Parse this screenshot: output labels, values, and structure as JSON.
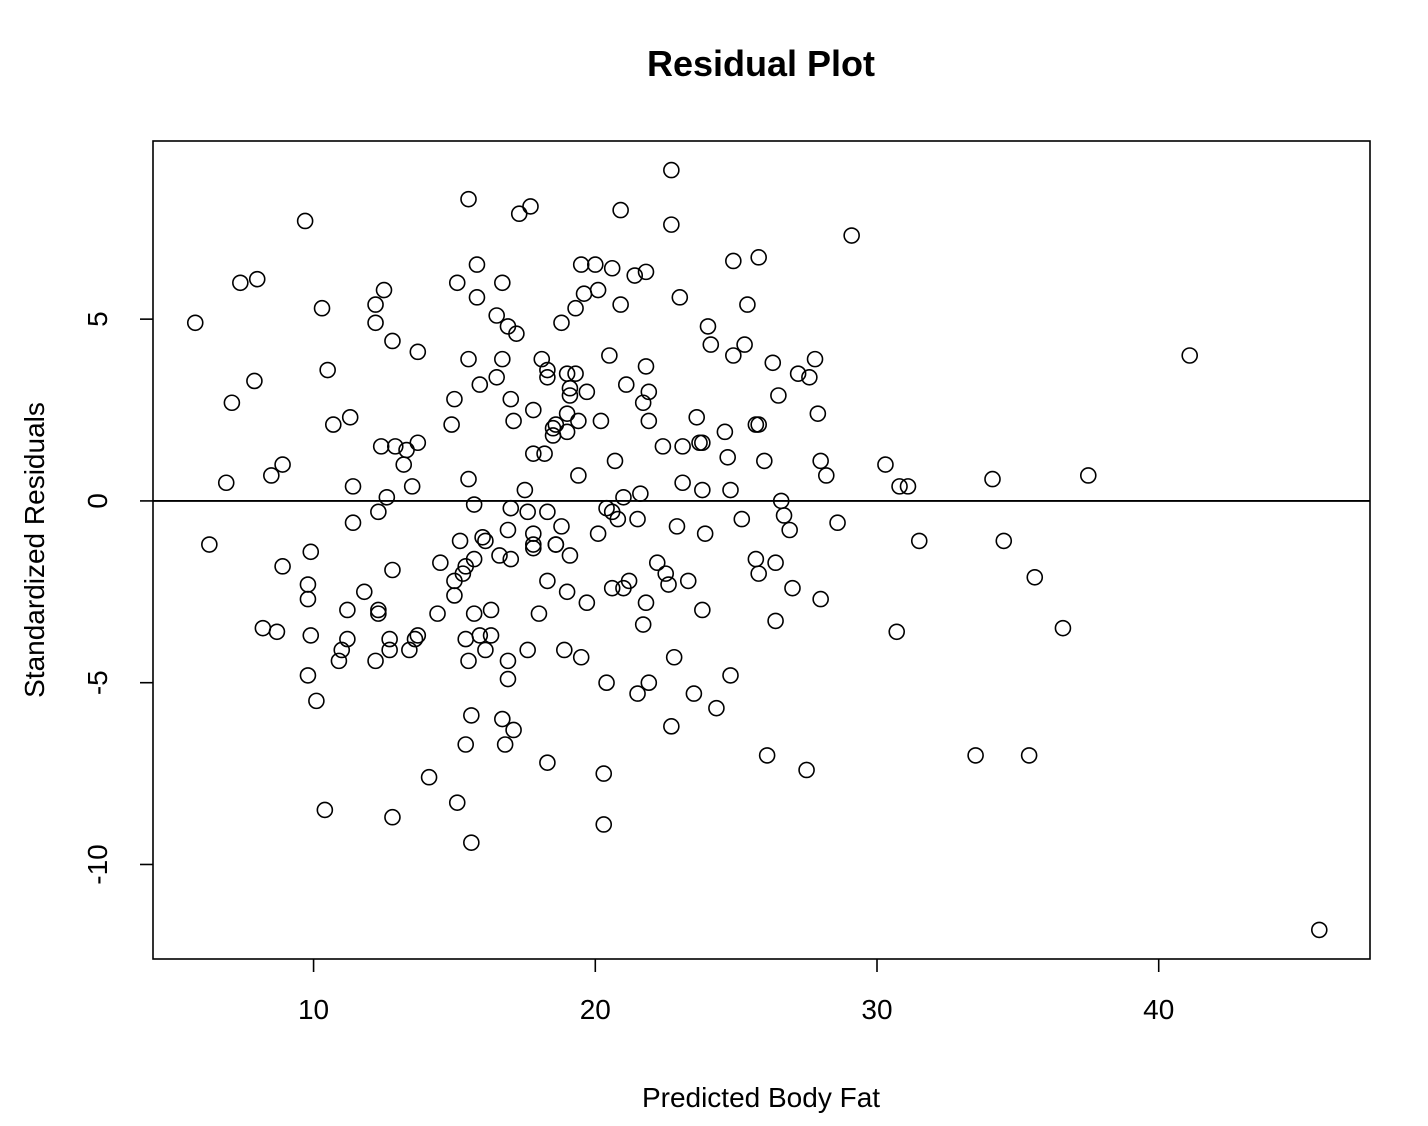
{
  "chart_data": {
    "type": "scatter",
    "title": "Residual Plot",
    "xlabel": "Predicted Body Fat",
    "ylabel": "Standardized Residuals",
    "xlim": [
      4.3,
      47.5
    ],
    "ylim": [
      -12.6,
      9.9
    ],
    "xticks": [
      10,
      20,
      30,
      40
    ],
    "yticks": [
      -10,
      -5,
      0,
      5
    ],
    "xtick_labels": [
      "10",
      "20",
      "30",
      "40"
    ],
    "ytick_labels": [
      "-10",
      "-5",
      "0",
      "5"
    ],
    "reference_line_y": 0,
    "grid": false,
    "legend": "none",
    "marker": "open-circle",
    "color": "#000000",
    "points": [
      [
        5.8,
        4.9
      ],
      [
        6.3,
        -1.2
      ],
      [
        6.9,
        0.5
      ],
      [
        7.1,
        2.7
      ],
      [
        7.4,
        6.0
      ],
      [
        7.9,
        3.3
      ],
      [
        8.0,
        6.1
      ],
      [
        8.2,
        -3.5
      ],
      [
        8.5,
        0.7
      ],
      [
        8.7,
        -3.6
      ],
      [
        8.9,
        1.0
      ],
      [
        8.9,
        -1.8
      ],
      [
        9.7,
        7.7
      ],
      [
        9.8,
        -4.8
      ],
      [
        9.8,
        -2.3
      ],
      [
        9.8,
        -2.7
      ],
      [
        9.9,
        -1.4
      ],
      [
        9.9,
        -3.7
      ],
      [
        10.1,
        -5.5
      ],
      [
        10.3,
        5.3
      ],
      [
        10.4,
        -8.5
      ],
      [
        10.5,
        3.6
      ],
      [
        10.7,
        2.1
      ],
      [
        10.9,
        -4.4
      ],
      [
        11.0,
        -4.1
      ],
      [
        11.2,
        -3.0
      ],
      [
        11.2,
        -3.8
      ],
      [
        11.3,
        2.3
      ],
      [
        11.4,
        0.4
      ],
      [
        11.4,
        -0.6
      ],
      [
        11.8,
        -2.5
      ],
      [
        12.2,
        5.4
      ],
      [
        12.2,
        4.9
      ],
      [
        12.2,
        -4.4
      ],
      [
        12.3,
        -0.3
      ],
      [
        12.3,
        -3.0
      ],
      [
        12.3,
        -3.1
      ],
      [
        12.4,
        1.5
      ],
      [
        12.5,
        5.8
      ],
      [
        12.6,
        0.1
      ],
      [
        12.7,
        -3.8
      ],
      [
        12.7,
        -4.1
      ],
      [
        12.8,
        4.4
      ],
      [
        12.8,
        -1.9
      ],
      [
        12.8,
        -8.7
      ],
      [
        12.9,
        1.5
      ],
      [
        13.2,
        1.0
      ],
      [
        13.3,
        1.4
      ],
      [
        13.4,
        -4.1
      ],
      [
        13.5,
        0.4
      ],
      [
        13.6,
        -3.8
      ],
      [
        13.7,
        1.6
      ],
      [
        13.7,
        4.1
      ],
      [
        13.7,
        -3.7
      ],
      [
        14.1,
        -7.6
      ],
      [
        14.4,
        -3.1
      ],
      [
        14.5,
        -1.7
      ],
      [
        14.9,
        2.1
      ],
      [
        15.0,
        -2.2
      ],
      [
        15.0,
        -2.6
      ],
      [
        15.0,
        2.8
      ],
      [
        15.1,
        6.0
      ],
      [
        15.1,
        -8.3
      ],
      [
        15.2,
        -1.1
      ],
      [
        15.3,
        -2.0
      ],
      [
        15.4,
        -1.8
      ],
      [
        15.4,
        -3.8
      ],
      [
        15.4,
        -6.7
      ],
      [
        15.5,
        8.3
      ],
      [
        15.5,
        3.9
      ],
      [
        15.5,
        0.6
      ],
      [
        15.5,
        -4.4
      ],
      [
        15.6,
        -5.9
      ],
      [
        15.6,
        -9.4
      ],
      [
        15.7,
        -0.1
      ],
      [
        15.7,
        -1.6
      ],
      [
        15.7,
        -3.1
      ],
      [
        15.8,
        6.5
      ],
      [
        15.8,
        5.6
      ],
      [
        15.9,
        3.2
      ],
      [
        15.9,
        -3.7
      ],
      [
        16.0,
        -1.0
      ],
      [
        16.1,
        -1.1
      ],
      [
        16.1,
        -4.1
      ],
      [
        16.3,
        -3.0
      ],
      [
        16.3,
        -3.7
      ],
      [
        16.5,
        5.1
      ],
      [
        16.5,
        3.4
      ],
      [
        16.6,
        -1.5
      ],
      [
        16.7,
        6.0
      ],
      [
        16.7,
        3.9
      ],
      [
        16.7,
        -6.0
      ],
      [
        16.8,
        -6.7
      ],
      [
        16.9,
        4.8
      ],
      [
        16.9,
        -0.8
      ],
      [
        16.9,
        -4.9
      ],
      [
        16.9,
        -4.4
      ],
      [
        17.0,
        -0.2
      ],
      [
        17.0,
        -1.6
      ],
      [
        17.0,
        2.8
      ],
      [
        17.1,
        -6.3
      ],
      [
        17.1,
        2.2
      ],
      [
        17.2,
        4.6
      ],
      [
        17.3,
        7.9
      ],
      [
        17.5,
        0.3
      ],
      [
        17.6,
        -0.3
      ],
      [
        17.6,
        -4.1
      ],
      [
        17.7,
        8.1
      ],
      [
        17.8,
        1.3
      ],
      [
        17.8,
        2.5
      ],
      [
        17.8,
        -0.9
      ],
      [
        17.8,
        -1.2
      ],
      [
        17.8,
        -1.3
      ],
      [
        18.0,
        -3.1
      ],
      [
        18.1,
        3.9
      ],
      [
        18.2,
        1.3
      ],
      [
        18.3,
        3.4
      ],
      [
        18.3,
        3.6
      ],
      [
        18.3,
        -0.3
      ],
      [
        18.3,
        -2.2
      ],
      [
        18.3,
        -7.2
      ],
      [
        18.5,
        1.8
      ],
      [
        18.5,
        2.0
      ],
      [
        18.6,
        -1.2
      ],
      [
        18.6,
        -1.2
      ],
      [
        18.6,
        2.1
      ],
      [
        18.8,
        4.9
      ],
      [
        18.8,
        -0.7
      ],
      [
        18.9,
        -4.1
      ],
      [
        19.0,
        3.5
      ],
      [
        19.0,
        2.4
      ],
      [
        19.0,
        1.9
      ],
      [
        19.0,
        -2.5
      ],
      [
        19.1,
        3.1
      ],
      [
        19.1,
        -1.5
      ],
      [
        19.1,
        2.9
      ],
      [
        19.3,
        3.5
      ],
      [
        19.3,
        5.3
      ],
      [
        19.4,
        0.7
      ],
      [
        19.4,
        2.2
      ],
      [
        19.5,
        6.5
      ],
      [
        19.5,
        -4.3
      ],
      [
        19.6,
        5.7
      ],
      [
        19.7,
        3.0
      ],
      [
        19.7,
        -2.8
      ],
      [
        20.0,
        6.5
      ],
      [
        20.1,
        5.8
      ],
      [
        20.1,
        -0.9
      ],
      [
        20.2,
        2.2
      ],
      [
        20.3,
        -7.5
      ],
      [
        20.3,
        -8.9
      ],
      [
        20.4,
        -0.2
      ],
      [
        20.4,
        -5.0
      ],
      [
        20.5,
        4.0
      ],
      [
        20.6,
        -0.3
      ],
      [
        20.6,
        -2.4
      ],
      [
        20.6,
        6.4
      ],
      [
        20.7,
        1.1
      ],
      [
        20.8,
        -0.5
      ],
      [
        20.9,
        5.4
      ],
      [
        20.9,
        8.0
      ],
      [
        21.0,
        0.1
      ],
      [
        21.0,
        -2.4
      ],
      [
        21.1,
        3.2
      ],
      [
        21.2,
        -2.2
      ],
      [
        21.4,
        6.2
      ],
      [
        21.5,
        -0.5
      ],
      [
        21.5,
        -5.3
      ],
      [
        21.6,
        0.2
      ],
      [
        21.7,
        -3.4
      ],
      [
        21.7,
        2.7
      ],
      [
        21.8,
        6.3
      ],
      [
        21.8,
        -2.8
      ],
      [
        21.8,
        3.7
      ],
      [
        21.9,
        3.0
      ],
      [
        21.9,
        2.2
      ],
      [
        21.9,
        -5.0
      ],
      [
        22.2,
        -1.7
      ],
      [
        22.4,
        1.5
      ],
      [
        22.5,
        -2.0
      ],
      [
        22.6,
        -2.3
      ],
      [
        22.7,
        9.1
      ],
      [
        22.7,
        7.6
      ],
      [
        22.7,
        -6.2
      ],
      [
        22.8,
        -4.3
      ],
      [
        22.9,
        -0.7
      ],
      [
        23.0,
        5.6
      ],
      [
        23.1,
        0.5
      ],
      [
        23.1,
        1.5
      ],
      [
        23.3,
        -2.2
      ],
      [
        23.5,
        -5.3
      ],
      [
        23.6,
        2.3
      ],
      [
        23.7,
        1.6
      ],
      [
        23.8,
        1.6
      ],
      [
        23.8,
        0.3
      ],
      [
        23.8,
        -3.0
      ],
      [
        23.9,
        -0.9
      ],
      [
        24.0,
        4.8
      ],
      [
        24.1,
        4.3
      ],
      [
        24.3,
        -5.7
      ],
      [
        24.6,
        1.9
      ],
      [
        24.7,
        1.2
      ],
      [
        24.8,
        0.3
      ],
      [
        24.8,
        -4.8
      ],
      [
        24.9,
        4.0
      ],
      [
        24.9,
        6.6
      ],
      [
        25.2,
        -0.5
      ],
      [
        25.3,
        4.3
      ],
      [
        25.4,
        5.4
      ],
      [
        25.7,
        2.1
      ],
      [
        25.7,
        -1.6
      ],
      [
        25.8,
        6.7
      ],
      [
        25.8,
        2.1
      ],
      [
        25.8,
        -2.0
      ],
      [
        26.0,
        1.1
      ],
      [
        26.1,
        -7.0
      ],
      [
        26.3,
        3.8
      ],
      [
        26.4,
        -1.7
      ],
      [
        26.4,
        -3.3
      ],
      [
        26.5,
        2.9
      ],
      [
        26.6,
        0.0
      ],
      [
        26.7,
        -0.4
      ],
      [
        26.9,
        -0.8
      ],
      [
        27.0,
        -2.4
      ],
      [
        27.2,
        3.5
      ],
      [
        27.5,
        -7.4
      ],
      [
        27.6,
        3.4
      ],
      [
        27.8,
        3.9
      ],
      [
        27.9,
        2.4
      ],
      [
        28.0,
        1.1
      ],
      [
        28.0,
        -2.7
      ],
      [
        28.2,
        0.7
      ],
      [
        28.6,
        -0.6
      ],
      [
        29.1,
        7.3
      ],
      [
        30.3,
        1.0
      ],
      [
        30.7,
        -3.6
      ],
      [
        30.8,
        0.4
      ],
      [
        31.1,
        0.4
      ],
      [
        31.5,
        -1.1
      ],
      [
        33.5,
        -7.0
      ],
      [
        34.1,
        0.6
      ],
      [
        34.5,
        -1.1
      ],
      [
        35.4,
        -7.0
      ],
      [
        35.6,
        -2.1
      ],
      [
        36.6,
        -3.5
      ],
      [
        37.5,
        0.7
      ],
      [
        41.1,
        4.0
      ],
      [
        45.7,
        -11.8
      ]
    ]
  }
}
